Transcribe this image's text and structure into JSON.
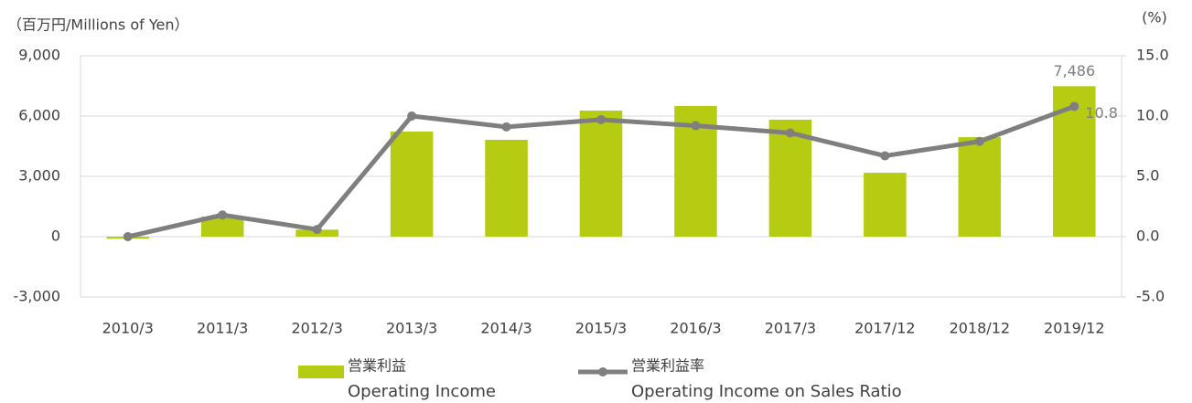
{
  "chart_data": {
    "type": "bar_line",
    "ylabel": "（百万円/Millions of Yen）",
    "y2label": "(%)",
    "categories": [
      "2010/3",
      "2011/3",
      "2012/3",
      "2013/3",
      "2014/3",
      "2015/3",
      "2016/3",
      "2017/3",
      "2017/12",
      "2018/12",
      "2019/12"
    ],
    "series": [
      {
        "name": "営業利益",
        "name_en": "Operating Income",
        "kind": "bar",
        "color": "#b5cc12",
        "values": [
          -100,
          1000,
          350,
          5230,
          4820,
          6270,
          6500,
          5820,
          3180,
          4950,
          7486
        ],
        "value_labels": [
          null,
          null,
          null,
          null,
          null,
          null,
          null,
          null,
          null,
          null,
          "7,486"
        ]
      },
      {
        "name": "営業利益率",
        "name_en": "Operating Income on Sales Ratio",
        "kind": "line",
        "axis": "y2",
        "color": "#7f7f7f",
        "values": [
          0,
          1.8,
          0.6,
          10.0,
          9.1,
          9.7,
          9.2,
          8.6,
          6.7,
          7.9,
          10.8
        ],
        "value_labels": [
          null,
          null,
          null,
          null,
          null,
          null,
          null,
          null,
          null,
          null,
          "10.8"
        ]
      }
    ],
    "ylim": [
      -3000,
      9000
    ],
    "yticks": [
      {
        "value": -3000,
        "label": "-3,000"
      },
      0,
      {
        "value": 3000,
        "label": "3,000"
      },
      {
        "value": 6000,
        "label": "6,000"
      },
      {
        "value": 9000,
        "label": "9,000"
      }
    ],
    "y2lim": [
      -5,
      15
    ],
    "y2ticks": [
      {
        "value": -5,
        "label": "-5.0"
      },
      {
        "value": 0,
        "label": "0.0"
      },
      {
        "value": 5,
        "label": "5.0"
      },
      {
        "value": 10,
        "label": "10.0"
      },
      {
        "value": 15,
        "label": "15.0"
      }
    ],
    "grid": true
  }
}
